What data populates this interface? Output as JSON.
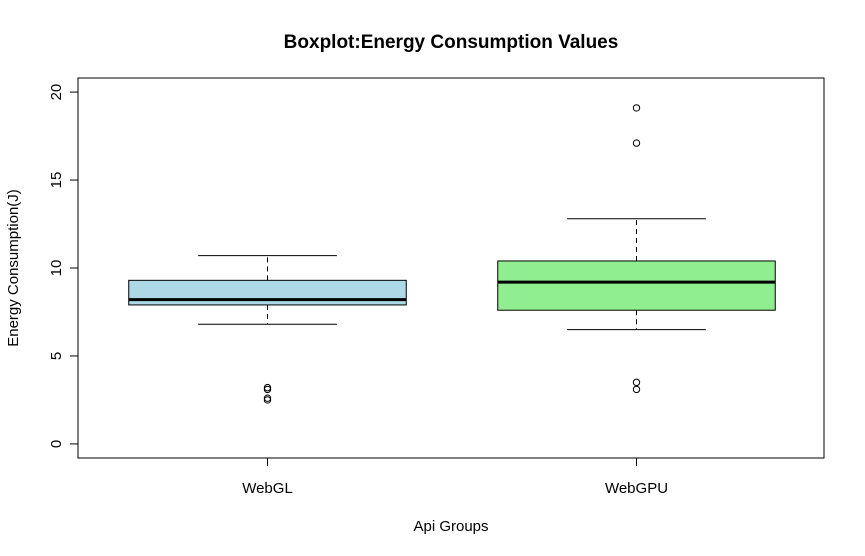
{
  "chart_data": {
    "type": "boxplot",
    "title": "Boxplot:Energy Consumption Values",
    "xlabel": "Api Groups",
    "ylabel": "Energy Consumption(J)",
    "ylim": [
      -0.8,
      20.8
    ],
    "yticks": [
      0,
      5,
      10,
      15,
      20
    ],
    "grid": false,
    "legend": "none",
    "categories": [
      "WebGL",
      "WebGPU"
    ],
    "boxes": [
      {
        "name": "WebGL",
        "color": "#add8e6",
        "whisker_low": 6.8,
        "q1": 7.9,
        "median": 8.2,
        "q3": 9.3,
        "whisker_high": 10.7,
        "outliers": [
          3.2,
          3.1,
          2.6,
          2.5
        ]
      },
      {
        "name": "WebGPU",
        "color": "#90ee90",
        "whisker_low": 6.5,
        "q1": 7.6,
        "median": 9.2,
        "q3": 10.4,
        "whisker_high": 12.8,
        "outliers": [
          19.1,
          17.1,
          3.5,
          3.1
        ]
      }
    ]
  }
}
